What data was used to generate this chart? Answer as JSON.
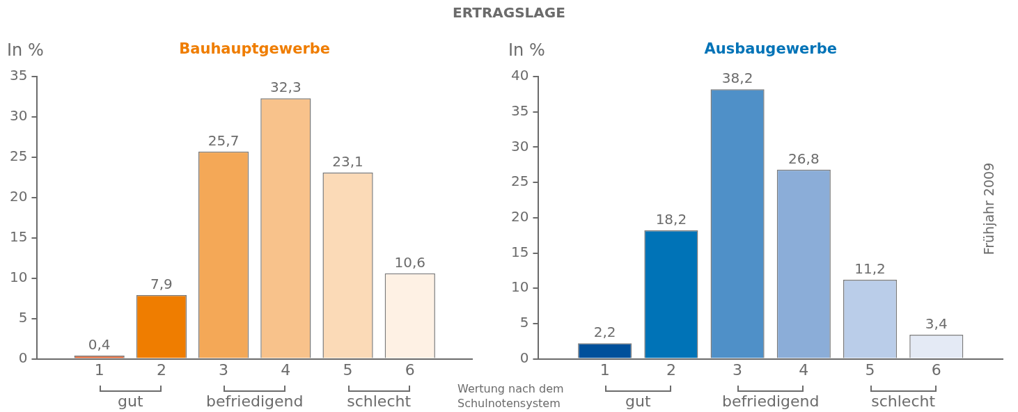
{
  "chart_data": [
    {
      "type": "bar",
      "title": "Bauhauptgewerbe",
      "ylabel": "In %",
      "categories": [
        "1",
        "2",
        "3",
        "4",
        "5",
        "6"
      ],
      "values": [
        0.4,
        7.9,
        25.7,
        32.3,
        23.1,
        10.6
      ],
      "colors": [
        "#e2561f",
        "#ef7d00",
        "#f4a857",
        "#f8c28b",
        "#fbdab7",
        "#fef1e4"
      ],
      "ylim": [
        0,
        35
      ],
      "yticks": [
        0,
        5,
        10,
        15,
        20,
        25,
        30,
        35
      ],
      "grid": false,
      "legend": false,
      "value_labels": [
        "0,4",
        "7,9",
        "25,7",
        "32,3",
        "23,1",
        "10,6"
      ],
      "annotations": [
        "gut",
        "befriedigend",
        "schlecht",
        "Wertung nach dem Schulnotensystem",
        "ERTRAGSLAGE"
      ]
    },
    {
      "type": "bar",
      "title": "Ausbaugewerbe",
      "ylabel": "In %",
      "categories": [
        "1",
        "2",
        "3",
        "4",
        "5",
        "6"
      ],
      "values": [
        2.2,
        18.2,
        38.2,
        26.8,
        11.2,
        3.4
      ],
      "colors": [
        "#00509b",
        "#0073b7",
        "#4f90c8",
        "#8badd8",
        "#bacde9",
        "#e4eaf5"
      ],
      "ylim": [
        0,
        40
      ],
      "yticks": [
        0,
        5,
        10,
        15,
        20,
        25,
        30,
        35,
        40
      ],
      "grid": false,
      "legend": false,
      "value_labels": [
        "2,2",
        "18,2",
        "38,2",
        "26,8",
        "11,2",
        "3,4"
      ],
      "annotations": [
        "gut",
        "befriedigend",
        "schlecht",
        "Frühjahr 2009"
      ]
    }
  ]
}
